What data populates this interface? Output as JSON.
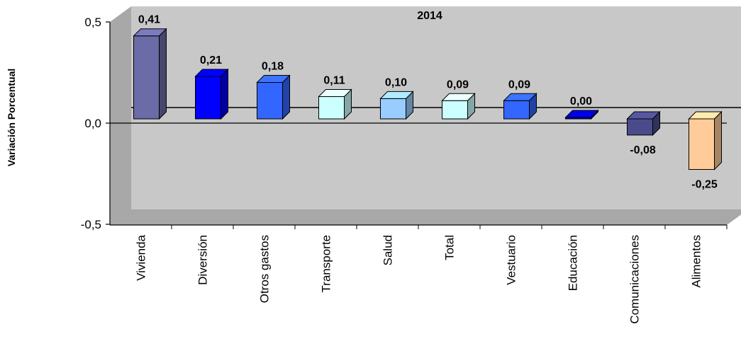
{
  "chart_data": {
    "type": "bar",
    "title": "2014",
    "xlabel": "",
    "ylabel": "Variación Porcentual",
    "ylim": [
      -0.5,
      0.5
    ],
    "yticks": [
      "-0,5",
      "0,0",
      "0,5"
    ],
    "ytick_values": [
      -0.5,
      0.0,
      0.5
    ],
    "grid": false,
    "legend": "none",
    "categories": [
      "Vivienda",
      "Diversión",
      "Otros gastos",
      "Transporte",
      "Salud",
      "Total",
      "Vestuario",
      "Educación",
      "Comunicaciones",
      "Alimentos"
    ],
    "values": [
      0.41,
      0.21,
      0.18,
      0.11,
      0.1,
      0.09,
      0.09,
      0.0,
      -0.08,
      -0.25
    ],
    "value_labels": [
      "0,41",
      "0,21",
      "0,18",
      "0,11",
      "0,10",
      "0,09",
      "0,09",
      "0,00",
      "-0,08",
      "-0,25"
    ],
    "colors": [
      "#6B6BA8",
      "#0000FF",
      "#3366FF",
      "#CCFFFF",
      "#99CCFF",
      "#CCFFFF",
      "#3366FF",
      "#0000CC",
      "#4B4B8C",
      "#FFCC99"
    ],
    "plot_background": "#C0C0C0",
    "wall_background": "#C8C8C8"
  }
}
